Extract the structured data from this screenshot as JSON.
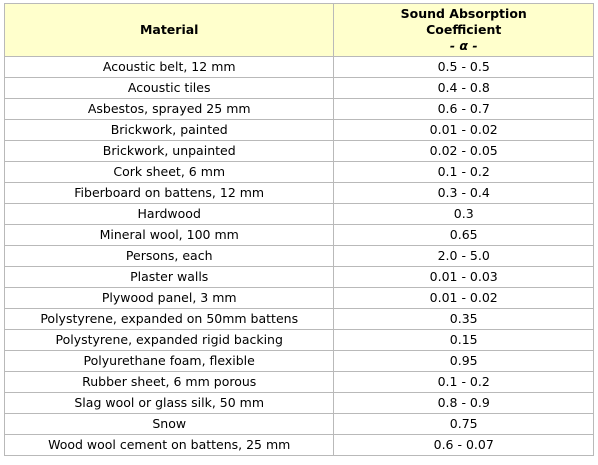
{
  "table": {
    "headers": {
      "material": "Material",
      "coefficient_line1": "Sound Absorption",
      "coefficient_line2": "Coefficient",
      "coefficient_symbol": "- α -"
    },
    "rows": [
      {
        "material": "Acoustic belt, 12 mm",
        "coefficient": "0.5 - 0.5"
      },
      {
        "material": "Acoustic tiles",
        "coefficient": "0.4 - 0.8"
      },
      {
        "material": "Asbestos, sprayed 25 mm",
        "coefficient": "0.6 - 0.7"
      },
      {
        "material": "Brickwork, painted",
        "coefficient": "0.01 - 0.02"
      },
      {
        "material": "Brickwork, unpainted",
        "coefficient": "0.02 - 0.05"
      },
      {
        "material": "Cork sheet, 6 mm",
        "coefficient": "0.1 - 0.2"
      },
      {
        "material": "Fiberboard on battens, 12 mm",
        "coefficient": "0.3 - 0.4"
      },
      {
        "material": "Hardwood",
        "coefficient": "0.3"
      },
      {
        "material": "Mineral wool, 100 mm",
        "coefficient": "0.65"
      },
      {
        "material": "Persons, each",
        "coefficient": "2.0 - 5.0"
      },
      {
        "material": "Plaster walls",
        "coefficient": "0.01 - 0.03"
      },
      {
        "material": "Plywood panel, 3 mm",
        "coefficient": "0.01 - 0.02"
      },
      {
        "material": "Polystyrene, expanded on 50mm battens",
        "coefficient": "0.35"
      },
      {
        "material": "Polystyrene, expanded rigid backing",
        "coefficient": "0.15"
      },
      {
        "material": "Polyurethane foam, flexible",
        "coefficient": "0.95"
      },
      {
        "material": "Rubber sheet, 6 mm porous",
        "coefficient": "0.1 - 0.2"
      },
      {
        "material": "Slag wool or glass silk, 50 mm",
        "coefficient": "0.8 - 0.9"
      },
      {
        "material": "Snow",
        "coefficient": "0.75"
      },
      {
        "material": "Wood wool cement on battens, 25 mm",
        "coefficient": "0.6 - 0.07"
      }
    ]
  },
  "colors": {
    "header_background": "#ffffcc",
    "border": "#b9b9b9"
  }
}
